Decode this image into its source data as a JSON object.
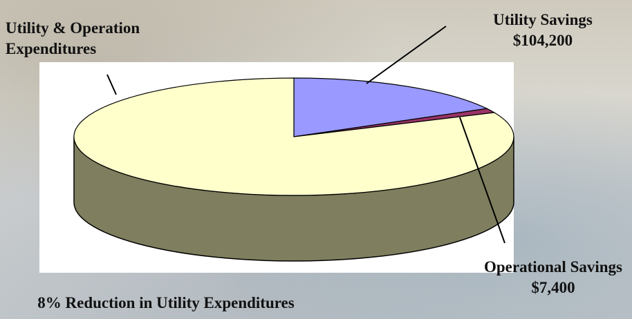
{
  "chart_data": {
    "type": "pie",
    "title": "8% Reduction in Utility Expenditures",
    "categories": [
      "Utility Savings",
      "Operational Savings",
      "Utility & Operation Expenditures"
    ],
    "values": [
      104200,
      7400,
      500000
    ],
    "value_labels": [
      "$104,200",
      "$7,400",
      null
    ],
    "colors": [
      "#9999ff",
      "#993366",
      "#ffffcc"
    ],
    "side_color": "#7f7f5f",
    "three_d": true
  }
}
